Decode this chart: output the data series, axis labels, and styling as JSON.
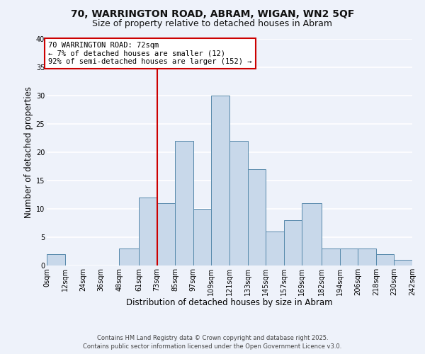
{
  "title": "70, WARRINGTON ROAD, ABRAM, WIGAN, WN2 5QF",
  "subtitle": "Size of property relative to detached houses in Abram",
  "xlabel": "Distribution of detached houses by size in Abram",
  "ylabel": "Number of detached properties",
  "bar_color": "#c8d8ea",
  "bar_edge_color": "#5588aa",
  "background_color": "#eef2fa",
  "grid_color": "#ffffff",
  "bins": [
    0,
    12,
    24,
    36,
    48,
    61,
    73,
    85,
    97,
    109,
    121,
    133,
    145,
    157,
    169,
    182,
    194,
    206,
    218,
    230,
    242
  ],
  "bin_labels": [
    "0sqm",
    "12sqm",
    "24sqm",
    "36sqm",
    "48sqm",
    "61sqm",
    "73sqm",
    "85sqm",
    "97sqm",
    "109sqm",
    "121sqm",
    "133sqm",
    "145sqm",
    "157sqm",
    "169sqm",
    "182sqm",
    "194sqm",
    "206sqm",
    "218sqm",
    "230sqm",
    "242sqm"
  ],
  "counts": [
    2,
    0,
    0,
    0,
    3,
    12,
    11,
    22,
    10,
    30,
    22,
    17,
    6,
    8,
    11,
    3,
    3,
    3,
    2,
    1
  ],
  "ylim": [
    0,
    40
  ],
  "yticks": [
    0,
    5,
    10,
    15,
    20,
    25,
    30,
    35,
    40
  ],
  "marker_value": 73,
  "marker_line_color": "#cc0000",
  "annotation_line1": "70 WARRINGTON ROAD: 72sqm",
  "annotation_line2": "← 7% of detached houses are smaller (12)",
  "annotation_line3": "92% of semi-detached houses are larger (152) →",
  "annotation_box_edge_color": "#cc0000",
  "footer_line1": "Contains HM Land Registry data © Crown copyright and database right 2025.",
  "footer_line2": "Contains public sector information licensed under the Open Government Licence v3.0.",
  "title_fontsize": 10,
  "subtitle_fontsize": 9,
  "axis_label_fontsize": 8.5,
  "tick_fontsize": 7,
  "annotation_fontsize": 7.5,
  "footer_fontsize": 6
}
